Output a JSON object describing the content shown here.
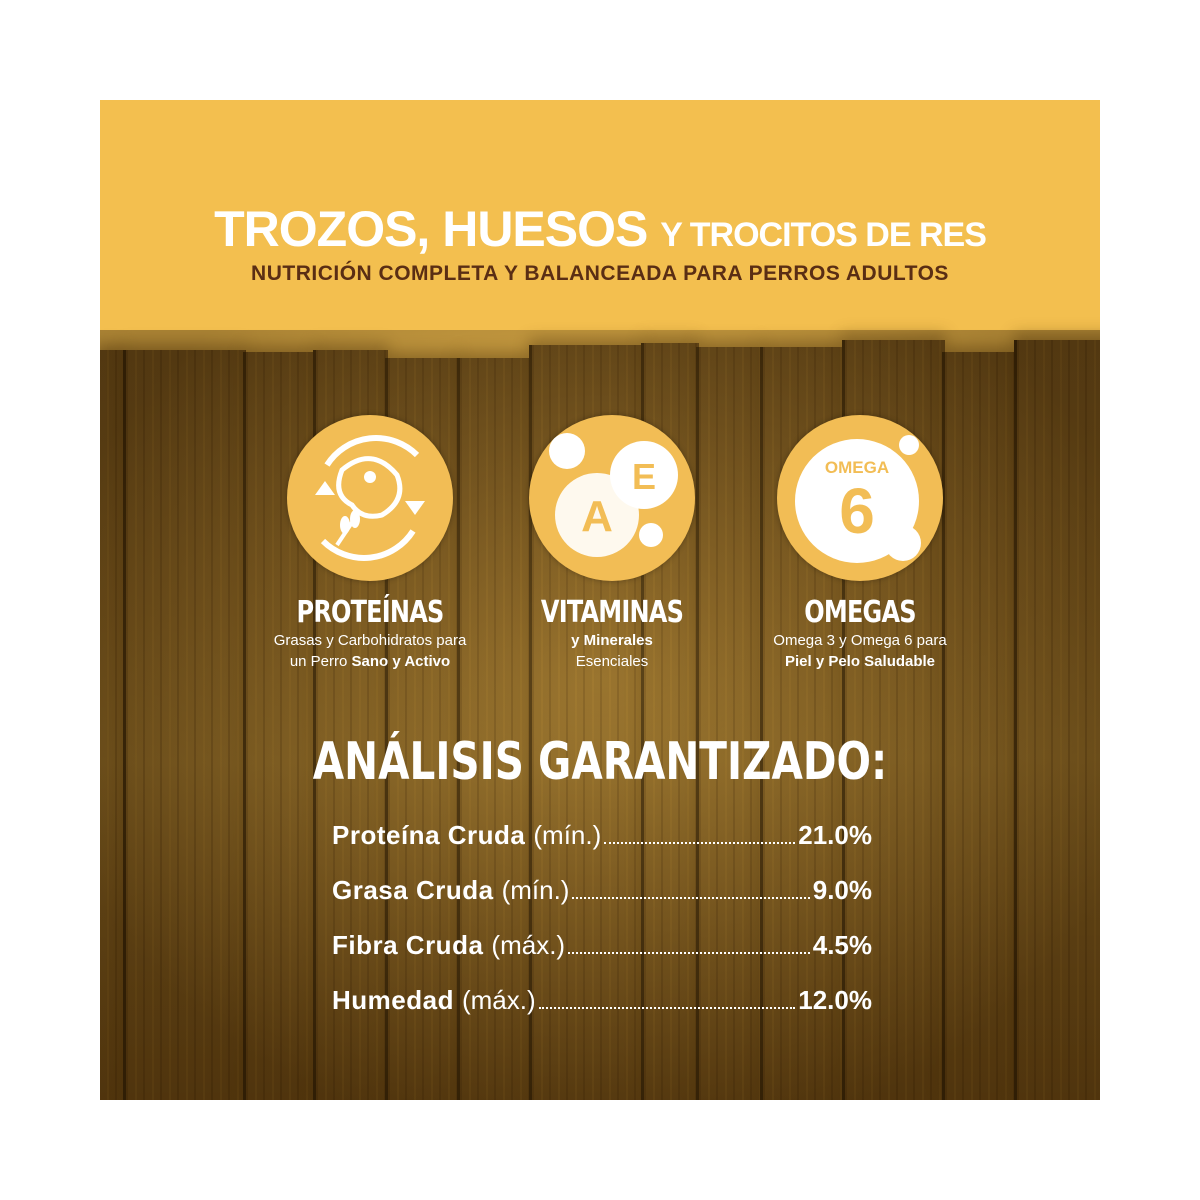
{
  "header": {
    "title_big": "TROZOS, HUESOS",
    "title_small": "Y TROCITOS DE RES",
    "subtitle": "NUTRICIÓN COMPLETA Y BALANCEADA PARA PERROS ADULTOS"
  },
  "colors": {
    "yellow": "#F3BF4F",
    "brown": "#5a2e14",
    "wood": "#7d5a1e"
  },
  "features": [
    {
      "icon": "meat-grain-cycle-icon",
      "title": "PROTEÍNAS",
      "line1": "Grasas y Carbohidratos para",
      "line2_plain": "un Perro ",
      "line2_bold": "Sano y Activo"
    },
    {
      "icon": "vitamin-ae-icon",
      "title": "VITAMINAS",
      "line1_bold": "y Minerales",
      "line2": "Esenciales",
      "icon_letters": [
        "A",
        "E"
      ]
    },
    {
      "icon": "omega-6-icon",
      "title": "OMEGAS",
      "line1": "Omega 3 y Omega 6 para",
      "line2_bold": "Piel y Pelo Saludable",
      "icon_text": "OMEGA",
      "icon_number": "6"
    }
  ],
  "analysis": {
    "title": "ANÁLISIS GARANTIZADO:",
    "rows": [
      {
        "name": "Proteína Cruda",
        "qual": "(mín.)",
        "value": "21.0%"
      },
      {
        "name": "Grasa Cruda",
        "qual": "(mín.)",
        "value": "9.0%"
      },
      {
        "name": "Fibra Cruda",
        "qual": "(máx.)",
        "value": "4.5%"
      },
      {
        "name": "Humedad",
        "qual": "(máx.)",
        "value": "12.0%"
      }
    ]
  }
}
